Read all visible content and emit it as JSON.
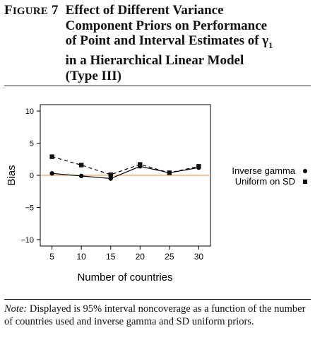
{
  "figure": {
    "label_initial": "F",
    "label_rest": "IGURE",
    "label_number": "7",
    "title_lines": [
      "Effect of Different Variance",
      "Component Priors on Performance",
      "of Point and Interval Estimates of γ",
      "in a Hierarchical Linear Model",
      "(Type III)"
    ],
    "title_subscript": "1"
  },
  "chart_data": {
    "type": "line",
    "xlabel": "Number of countries",
    "ylabel": "Bias",
    "x": [
      5,
      10,
      15,
      20,
      25,
      30
    ],
    "xticks": [
      "5",
      "10",
      "15",
      "20",
      "25",
      "30"
    ],
    "yticks": [
      "10",
      "5",
      "0",
      "−5",
      "−10"
    ],
    "ytick_values": [
      10,
      5,
      0,
      -5,
      -10
    ],
    "xlim": [
      3,
      32
    ],
    "ylim": [
      -11,
      11
    ],
    "reference_line": {
      "y": 0,
      "color": "#f4a460"
    },
    "series": [
      {
        "name": "Inverse gamma",
        "marker": "circle",
        "line": "solid",
        "values": [
          0.3,
          -0.1,
          -0.5,
          1.4,
          0.4,
          1.2
        ]
      },
      {
        "name": "Uniform on SD",
        "marker": "square",
        "line": "dashed",
        "values": [
          2.9,
          1.6,
          0.1,
          1.7,
          0.4,
          1.4
        ]
      }
    ],
    "legend_position": "right",
    "grid": false
  },
  "note": {
    "label": "Note:",
    "text": "Displayed is 95% interval noncoverage as a function of the number of countries used and inverse gamma and SD uniform priors."
  }
}
